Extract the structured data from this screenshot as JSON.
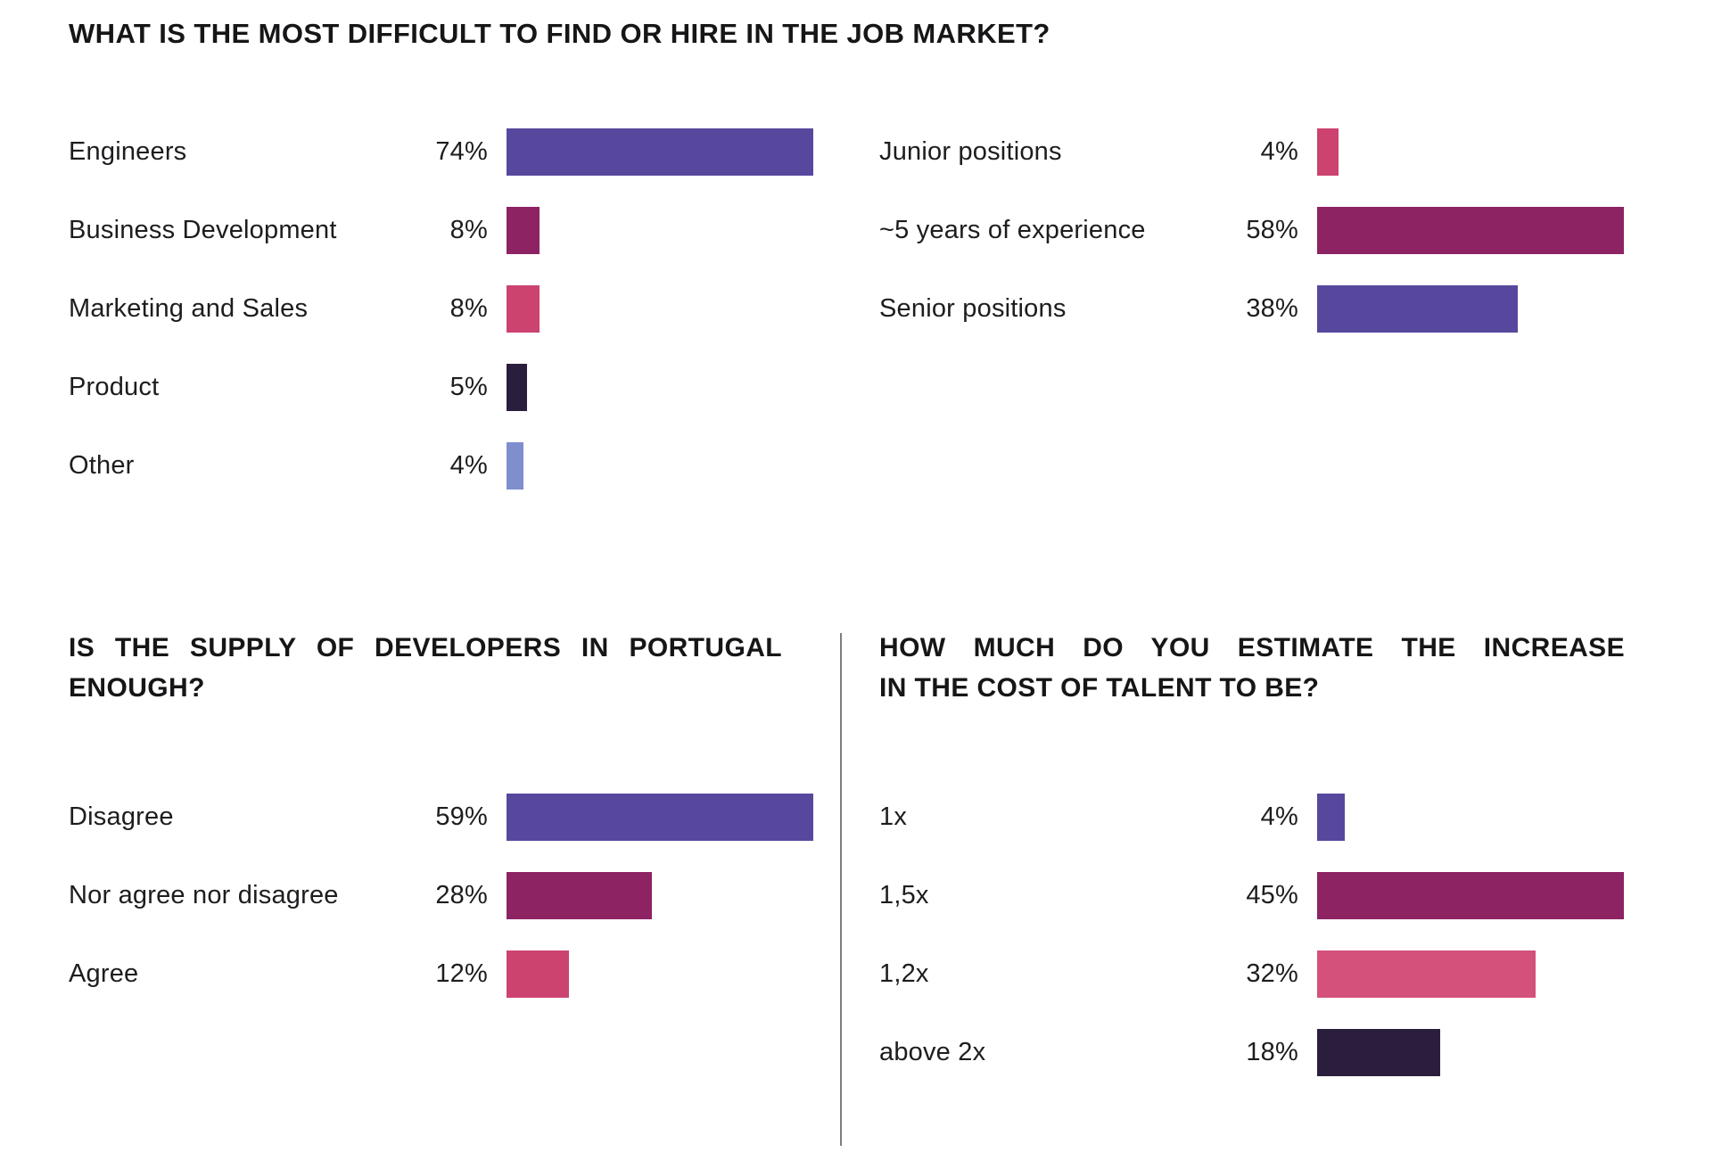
{
  "colors": {
    "purple": "#57489D",
    "plum": "#8D2363",
    "pink": "#CC4370",
    "light_pink": "#D3517A",
    "dark_purple": "#2B1E3D",
    "periwinkle": "#7F8FCD",
    "text": "#1D1D20",
    "divider_gray": "#7E7E80",
    "background": "#FFFFFF"
  },
  "charts": {
    "top": {
      "title": "WHAT IS THE MOST DIFFICULT TO FIND OR HIRE IN THE JOB MARKET?",
      "left": {
        "scale_max": 74,
        "rows": [
          {
            "label": "Engineers",
            "value": 74,
            "pct": "74%",
            "color": "#57489D"
          },
          {
            "label": "Business Development",
            "value": 8,
            "pct": "8%",
            "color": "#8D2363"
          },
          {
            "label": "Marketing and Sales",
            "value": 8,
            "pct": "8%",
            "color": "#CC4370"
          },
          {
            "label": "Product",
            "value": 5,
            "pct": "5%",
            "color": "#2B1E3D"
          },
          {
            "label": "Other",
            "value": 4,
            "pct": "4%",
            "color": "#7F8FCD"
          }
        ]
      },
      "right": {
        "scale_max": 58,
        "rows": [
          {
            "label": "Junior positions",
            "value": 4,
            "pct": "4%",
            "color": "#CC4370"
          },
          {
            "label": "~5 years of experience",
            "value": 58,
            "pct": "58%",
            "color": "#8D2363"
          },
          {
            "label": "Senior positions",
            "value": 38,
            "pct": "38%",
            "color": "#57489D"
          }
        ]
      }
    },
    "bottom_left": {
      "title_line1": "IS THE SUPPLY OF DEVELOPERS IN PORTUGAL",
      "title_line2": "ENOUGH?",
      "scale_max": 59,
      "rows": [
        {
          "label": "Disagree",
          "value": 59,
          "pct": "59%",
          "color": "#57489D"
        },
        {
          "label": "Nor agree nor disagree",
          "value": 28,
          "pct": "28%",
          "color": "#8D2363"
        },
        {
          "label": "Agree",
          "value": 12,
          "pct": "12%",
          "color": "#CC4370"
        }
      ]
    },
    "bottom_right": {
      "title_line1": "HOW MUCH DO YOU ESTIMATE THE INCREASE",
      "title_line2": "IN THE COST OF TALENT TO BE?",
      "scale_max": 45,
      "rows": [
        {
          "label": "1x",
          "value": 4,
          "pct": "4%",
          "color": "#57489D"
        },
        {
          "label": "1,5x",
          "value": 45,
          "pct": "45%",
          "color": "#8D2363"
        },
        {
          "label": "1,2x",
          "value": 32,
          "pct": "32%",
          "color": "#D3517A"
        },
        {
          "label": "above 2x",
          "value": 18,
          "pct": "18%",
          "color": "#2B1E3D"
        }
      ]
    }
  },
  "chart_data": [
    {
      "type": "bar",
      "orientation": "horizontal",
      "title": "WHAT IS THE MOST DIFFICULT TO FIND OR HIRE IN THE JOB MARKET?",
      "unit": "%",
      "columns": [
        {
          "categories": [
            "Engineers",
            "Business Development",
            "Marketing and Sales",
            "Product",
            "Other"
          ],
          "values": [
            74,
            8,
            8,
            5,
            4
          ]
        },
        {
          "categories": [
            "Junior positions",
            "~5 years of experience",
            "Senior positions"
          ],
          "values": [
            4,
            58,
            38
          ]
        }
      ]
    },
    {
      "type": "bar",
      "orientation": "horizontal",
      "title": "IS THE SUPPLY OF DEVELOPERS IN PORTUGAL ENOUGH?",
      "unit": "%",
      "categories": [
        "Disagree",
        "Nor agree nor disagree",
        "Agree"
      ],
      "values": [
        59,
        28,
        12
      ]
    },
    {
      "type": "bar",
      "orientation": "horizontal",
      "title": "HOW MUCH DO YOU ESTIMATE THE INCREASE IN THE COST OF TALENT TO BE?",
      "unit": "%",
      "categories": [
        "1x",
        "1,5x",
        "1,2x",
        "above 2x"
      ],
      "values": [
        4,
        45,
        32,
        18
      ]
    }
  ]
}
